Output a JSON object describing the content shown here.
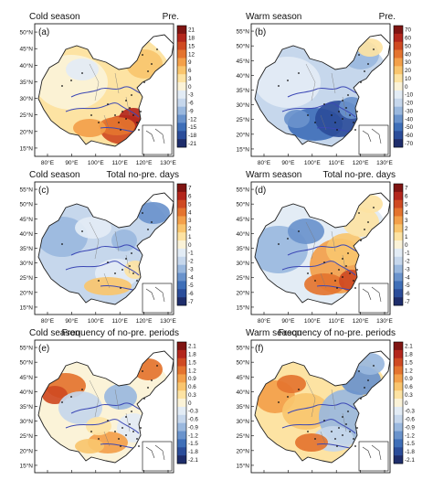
{
  "chart_data": [
    {
      "type": "heatmap",
      "panel_label": "(a)",
      "season": "Cold season",
      "variable": "Pre.",
      "colorbar_ticks": [
        "21",
        "18",
        "15",
        "12",
        "9",
        "6",
        "3",
        "0",
        "-3",
        "-6",
        "-9",
        "-12",
        "-15",
        "-18",
        "-21"
      ],
      "colorbar_range": [
        -21,
        21
      ],
      "lat_ticks": [
        "50°N",
        "45°N",
        "40°N",
        "35°N",
        "30°N",
        "25°N",
        "20°N",
        "15°N"
      ],
      "lon_ticks": [
        "80°E",
        "90°E",
        "100°E",
        "110°E",
        "120°E",
        "130°E"
      ]
    },
    {
      "type": "heatmap",
      "panel_label": "(b)",
      "season": "Warm season",
      "variable": "Pre.",
      "colorbar_ticks": [
        "70",
        "60",
        "50",
        "40",
        "30",
        "20",
        "10",
        "0",
        "-10",
        "-20",
        "-30",
        "-40",
        "-50",
        "-60",
        "-70"
      ],
      "colorbar_range": [
        -70,
        70
      ],
      "lat_ticks": [
        "55°N",
        "50°N",
        "45°N",
        "40°N",
        "35°N",
        "30°N",
        "25°N",
        "20°N",
        "15°N"
      ],
      "lon_ticks": [
        "80°E",
        "90°E",
        "100°E",
        "110°E",
        "120°E",
        "130°E"
      ]
    },
    {
      "type": "heatmap",
      "panel_label": "(c)",
      "season": "Cold season",
      "variable": "Total no-pre. days",
      "colorbar_ticks": [
        "7",
        "6",
        "5",
        "4",
        "3",
        "2",
        "1",
        "0",
        "-1",
        "-2",
        "-3",
        "-4",
        "-5",
        "-6",
        "-7"
      ],
      "colorbar_range": [
        -7,
        7
      ],
      "lat_ticks": [
        "55°N",
        "50°N",
        "45°N",
        "40°N",
        "35°N",
        "30°N",
        "25°N",
        "20°N",
        "15°N"
      ],
      "lon_ticks": [
        "80°E",
        "90°E",
        "100°E",
        "110°E",
        "120°E",
        "130°E"
      ]
    },
    {
      "type": "heatmap",
      "panel_label": "(d)",
      "season": "Warm season",
      "variable": "Total no-pre. days",
      "colorbar_ticks": [
        "7",
        "6",
        "5",
        "4",
        "3",
        "2",
        "1",
        "0",
        "-1",
        "-2",
        "-3",
        "-4",
        "-5",
        "-6",
        "-7"
      ],
      "colorbar_range": [
        -7,
        7
      ],
      "lat_ticks": [
        "55°N",
        "50°N",
        "45°N",
        "40°N",
        "35°N",
        "30°N",
        "25°N",
        "20°N",
        "15°N"
      ],
      "lon_ticks": [
        "80°E",
        "90°E",
        "100°E",
        "110°E",
        "120°E",
        "130°E"
      ]
    },
    {
      "type": "heatmap",
      "panel_label": "(e)",
      "season": "Cold season",
      "variable": "Frequency of no-pre. periods",
      "colorbar_ticks": [
        "2.1",
        "1.8",
        "1.5",
        "1.2",
        "0.9",
        "0.6",
        "0.3",
        "0",
        "-0.3",
        "-0.6",
        "-0.9",
        "-1.2",
        "-1.5",
        "-1.8",
        "-2.1"
      ],
      "colorbar_range": [
        -2.1,
        2.1
      ],
      "lat_ticks": [
        "55°N",
        "50°N",
        "45°N",
        "40°N",
        "35°N",
        "30°N",
        "25°N",
        "20°N",
        "15°N"
      ],
      "lon_ticks": [
        "80°E",
        "90°E",
        "100°E",
        "110°E",
        "120°E",
        "130°E"
      ]
    },
    {
      "type": "heatmap",
      "panel_label": "(f)",
      "season": "Warm season",
      "variable": "Frequency of no-pre. periods",
      "colorbar_ticks": [
        "2.1",
        "1.8",
        "1.5",
        "1.2",
        "0.9",
        "0.6",
        "0.3",
        "0",
        "-0.3",
        "-0.6",
        "-0.9",
        "-1.2",
        "-1.5",
        "-1.8",
        "-2.1"
      ],
      "colorbar_range": [
        -2.1,
        2.1
      ],
      "lat_ticks": [
        "55°N",
        "50°N",
        "45°N",
        "40°N",
        "35°N",
        "30°N",
        "25°N",
        "20°N",
        "15°N"
      ],
      "lon_ticks": [
        "80°E",
        "90°E",
        "100°E",
        "110°E",
        "120°E",
        "130°E"
      ]
    }
  ],
  "colors": {
    "diverging_scale": [
      "#1e2d6b",
      "#2b4d9a",
      "#3f6fb8",
      "#6a93cc",
      "#9ab8de",
      "#c6d7ec",
      "#e3ecf5",
      "#fbf3d8",
      "#fde3a3",
      "#f9c56e",
      "#f3a04a",
      "#e4742f",
      "#cf4a22",
      "#b3261c",
      "#7f1412"
    ],
    "land_neutral": "#f3f0dc",
    "river": "#3b47b5",
    "border": "#222222",
    "station_dot": "#111111"
  }
}
